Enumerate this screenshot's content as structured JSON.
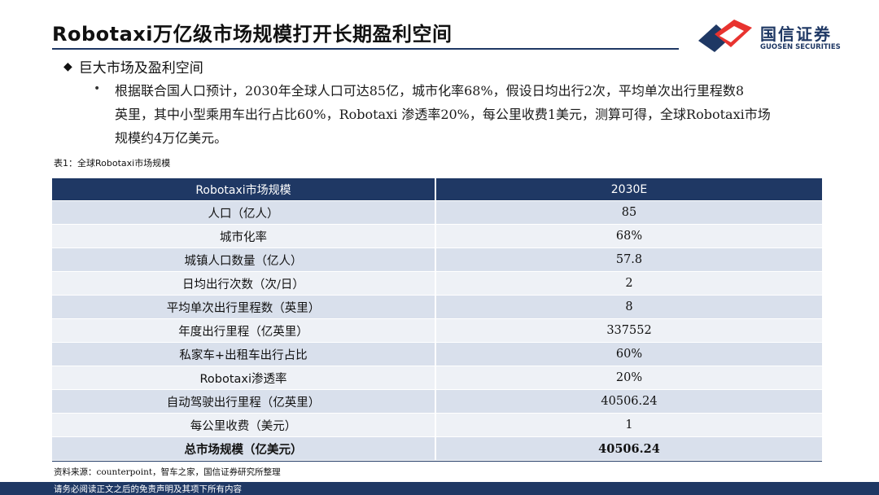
{
  "header": {
    "title": "Robotaxi万亿级市场规模打开长期盈利空间",
    "logo_cn": "国信证券",
    "logo_en": "GUOSEN SECURITIES"
  },
  "section": {
    "heading": "巨大市场及盈利空间",
    "paragraph_lines": [
      "根据联合国人口预计，2030年全球人口可达85亿，城市化率68%，假设日均出行2次，平均单次出行里程数8",
      "英里，其中小型乘用车出行占比60%，Robotaxi 渗透率20%，每公里收费1美元，测算可得，全球Robotaxi市场",
      "规模约4万亿美元。"
    ]
  },
  "table": {
    "caption": "表1：全球Robotaxi市场规模",
    "headers": [
      "Robotaxi市场规模",
      "2030E"
    ],
    "rows": [
      [
        "人口（亿人）",
        "85"
      ],
      [
        "城市化率",
        "68%"
      ],
      [
        "城镇人口数量（亿人）",
        "57.8"
      ],
      [
        "日均出行次数（次/日）",
        "2"
      ],
      [
        "平均单次出行里程数（英里）",
        "8"
      ],
      [
        "年度出行里程（亿英里）",
        "337552"
      ],
      [
        "私家车+出租车出行占比",
        "60%"
      ],
      [
        "Robotaxi渗透率",
        "20%"
      ],
      [
        "自动驾驶出行里程（亿英里）",
        "40506.24"
      ],
      [
        "每公里收费（美元）",
        "1"
      ],
      [
        "总市场规模（亿美元）",
        "40506.24"
      ]
    ]
  },
  "source": {
    "prefix": "资料来源：",
    "latin": "counterpoint",
    "suffix": "，智车之家，国信证券研究所整理"
  },
  "footer": {
    "disclaimer": "请务必阅读正文之后的免责声明及其项下所有内容"
  },
  "colors": {
    "brand_navy": "#1f3864",
    "brand_red": "#e8332f",
    "row_dark": "#d9e0ec",
    "row_light": "#eef1f6"
  }
}
